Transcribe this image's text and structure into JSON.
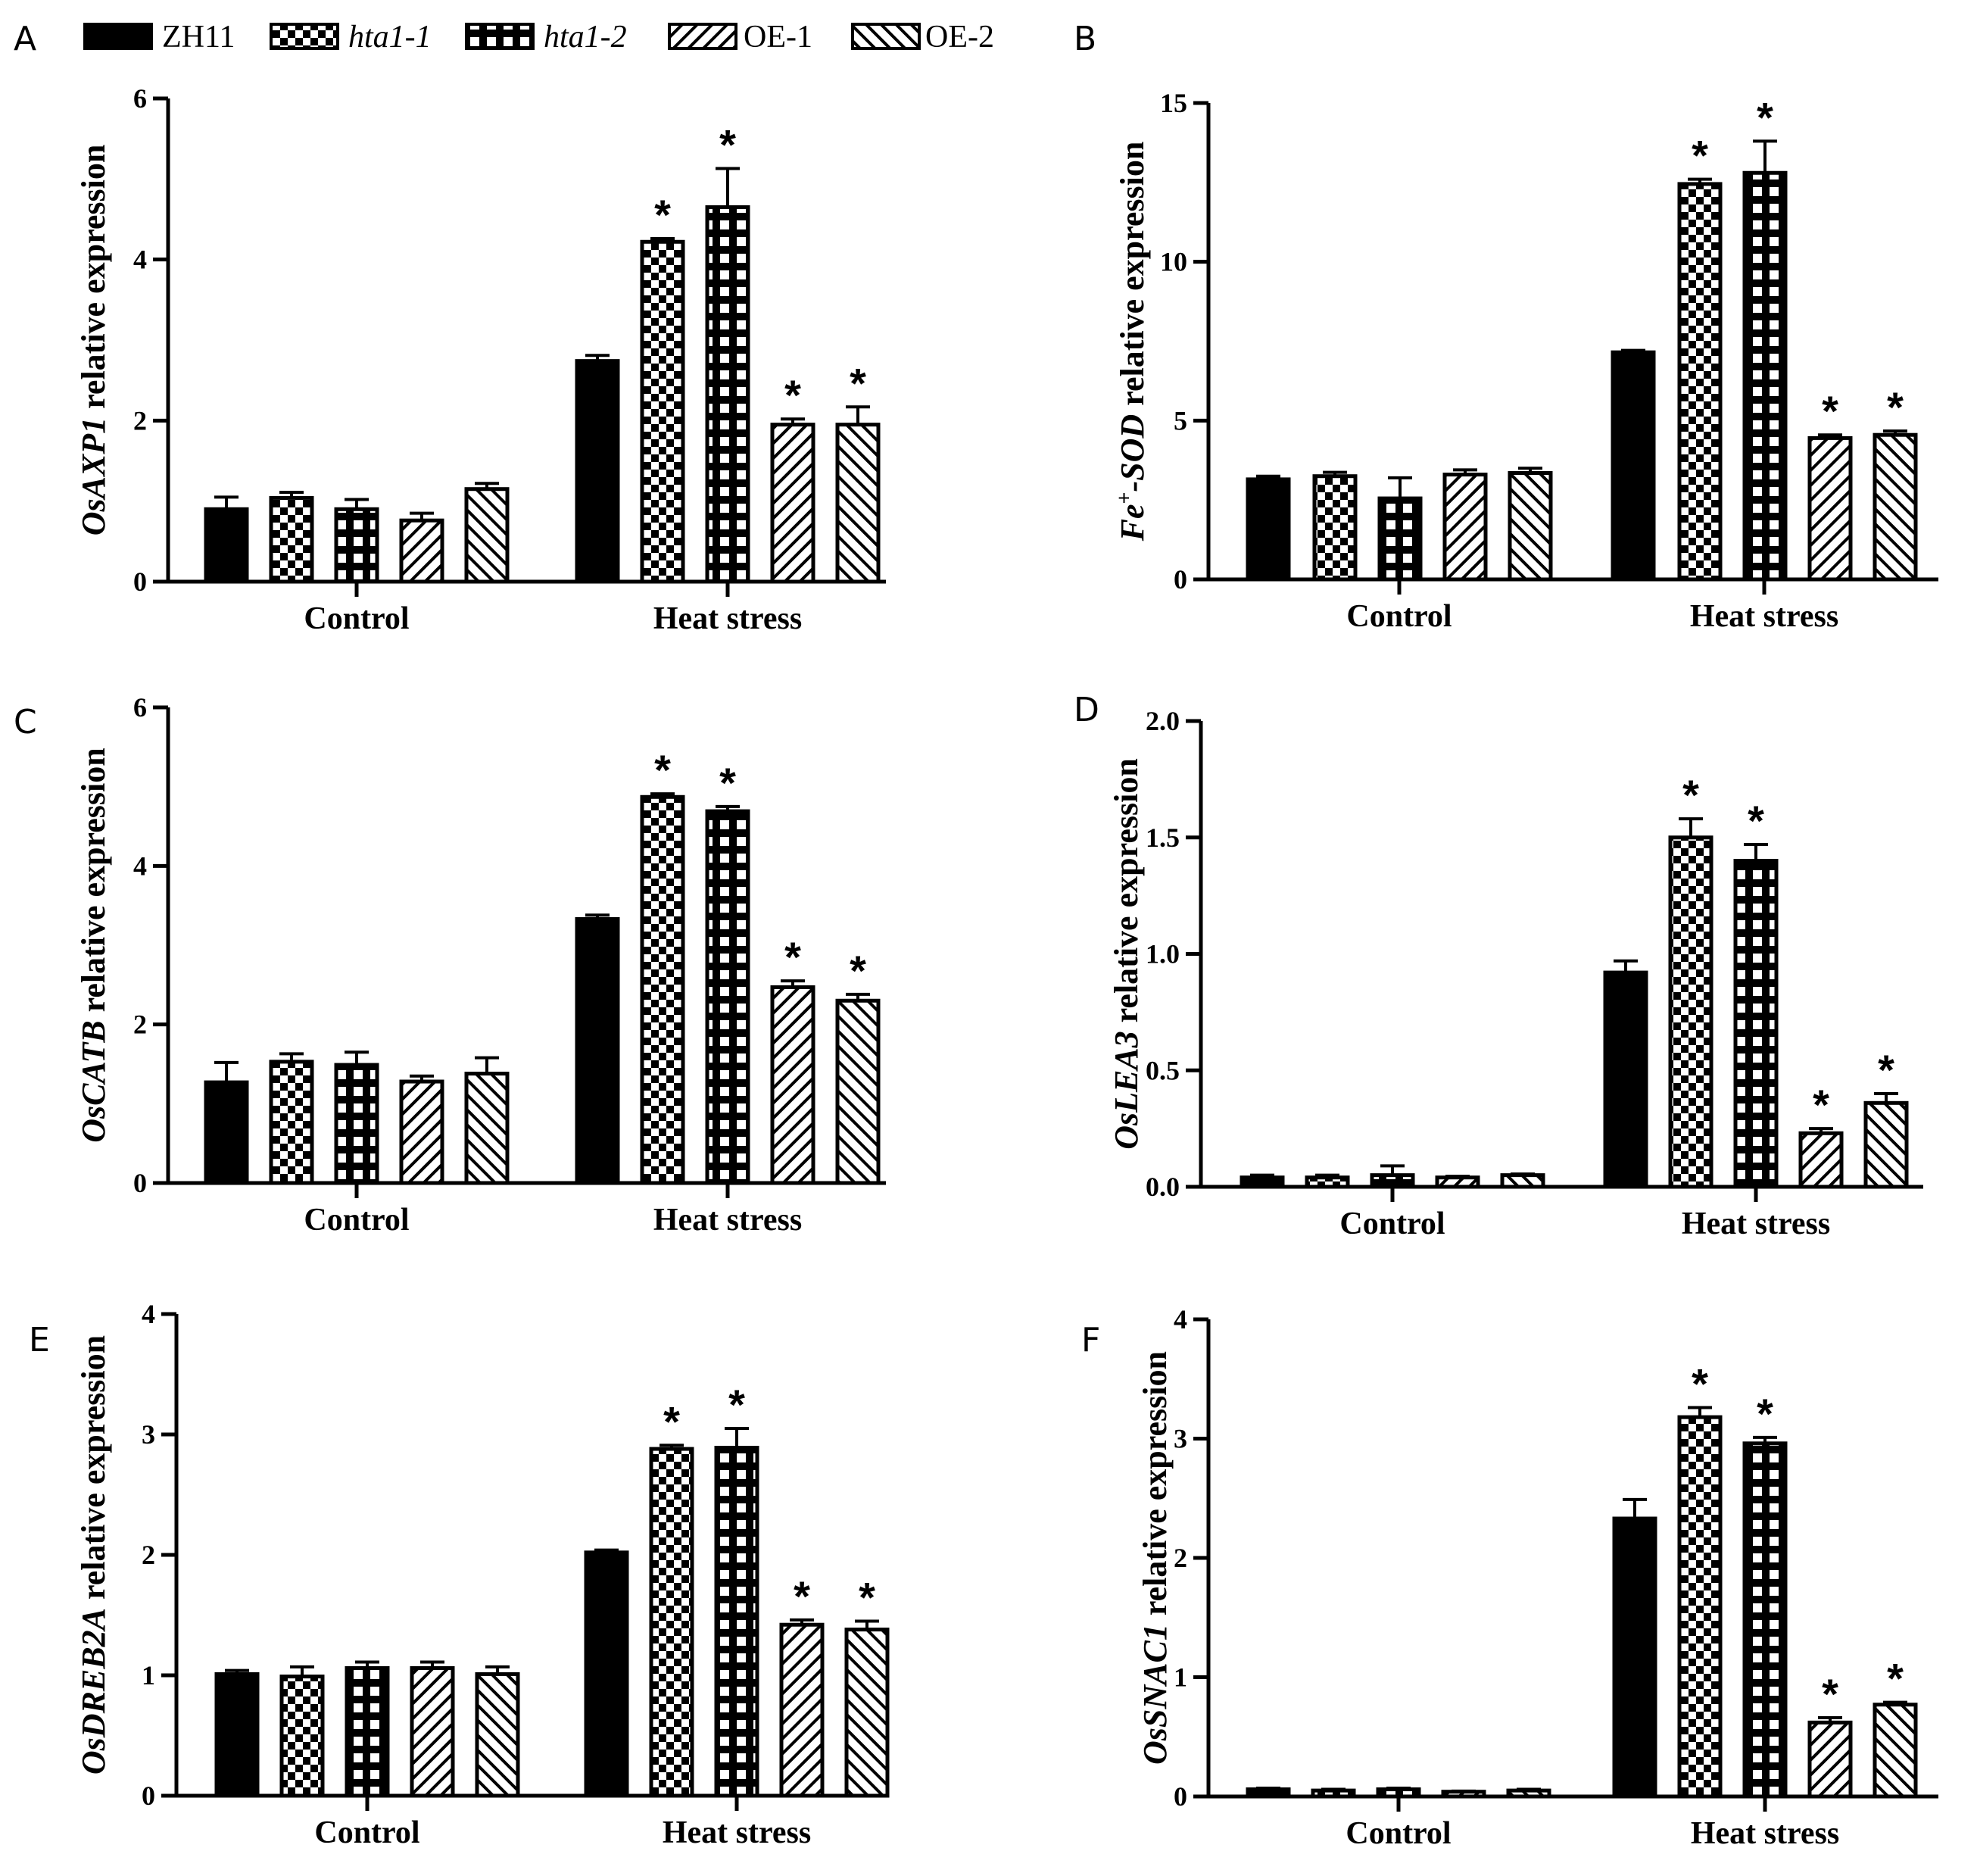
{
  "legend": [
    {
      "label": "ZH11",
      "pattern": "solid",
      "italic": false
    },
    {
      "label": "hta1-1",
      "pattern": "checker",
      "italic": true
    },
    {
      "label": "hta1-2",
      "pattern": "grid",
      "italic": true
    },
    {
      "label": "OE-1",
      "pattern": "diag",
      "italic": false
    },
    {
      "label": "OE-2",
      "pattern": "antidiag",
      "italic": false
    }
  ],
  "colors": {
    "ink": "#000000",
    "background": "#ffffff"
  },
  "significance_marker": "*",
  "chart_data": [
    {
      "panel": "A",
      "type": "bar",
      "ylabel_gene": "OsAXP1",
      "ylabel_sup": "",
      "ylabel_gene_suffix": "",
      "ylabel_rest": " relative expression",
      "ylim": [
        0,
        6
      ],
      "yticks": [
        0,
        2,
        4,
        6
      ],
      "tick_labels": [
        "0",
        "2",
        "4",
        "6"
      ],
      "categories": [
        "Control",
        "Heat stress"
      ],
      "series": [
        {
          "name": "ZH11",
          "values": [
            0.9,
            2.74
          ],
          "errors": [
            0.15,
            0.07
          ],
          "sig": [
            false,
            false
          ]
        },
        {
          "name": "hta1-1",
          "values": [
            1.04,
            4.22
          ],
          "errors": [
            0.07,
            0.04
          ],
          "sig": [
            false,
            true
          ]
        },
        {
          "name": "hta1-2",
          "values": [
            0.9,
            4.65
          ],
          "errors": [
            0.12,
            0.48
          ],
          "sig": [
            false,
            true
          ]
        },
        {
          "name": "OE-1",
          "values": [
            0.76,
            1.95
          ],
          "errors": [
            0.09,
            0.07
          ],
          "sig": [
            false,
            true
          ]
        },
        {
          "name": "OE-2",
          "values": [
            1.15,
            1.95
          ],
          "errors": [
            0.07,
            0.22
          ],
          "sig": [
            false,
            true
          ]
        }
      ]
    },
    {
      "panel": "B",
      "type": "bar",
      "ylabel_gene": "Fe",
      "ylabel_sup": "+",
      "ylabel_gene_suffix": "-SOD",
      "ylabel_rest": " relative expression",
      "ylim": [
        0,
        15
      ],
      "yticks": [
        0,
        5,
        10,
        15
      ],
      "tick_labels": [
        "0",
        "5",
        "10",
        "15"
      ],
      "categories": [
        "Control",
        "Heat stress"
      ],
      "series": [
        {
          "name": "ZH11",
          "values": [
            3.15,
            7.15
          ],
          "errors": [
            0.1,
            0.06
          ],
          "sig": [
            false,
            false
          ]
        },
        {
          "name": "hta1-1",
          "values": [
            3.25,
            12.45
          ],
          "errors": [
            0.12,
            0.15
          ],
          "sig": [
            false,
            true
          ]
        },
        {
          "name": "hta1-2",
          "values": [
            2.55,
            12.8
          ],
          "errors": [
            0.65,
            1.0
          ],
          "sig": [
            false,
            true
          ]
        },
        {
          "name": "OE-1",
          "values": [
            3.3,
            4.45
          ],
          "errors": [
            0.15,
            0.1
          ],
          "sig": [
            false,
            true
          ]
        },
        {
          "name": "OE-2",
          "values": [
            3.35,
            4.55
          ],
          "errors": [
            0.15,
            0.12
          ],
          "sig": [
            false,
            true
          ]
        }
      ]
    },
    {
      "panel": "C",
      "type": "bar",
      "ylabel_gene": "OsCATB",
      "ylabel_sup": "",
      "ylabel_gene_suffix": "",
      "ylabel_rest": " relative expression",
      "ylim": [
        0,
        6
      ],
      "yticks": [
        0,
        2,
        4,
        6
      ],
      "tick_labels": [
        "0",
        "2",
        "4",
        "6"
      ],
      "categories": [
        "Control",
        "Heat stress"
      ],
      "series": [
        {
          "name": "ZH11",
          "values": [
            1.27,
            3.33
          ],
          "errors": [
            0.25,
            0.05
          ],
          "sig": [
            false,
            false
          ]
        },
        {
          "name": "hta1-1",
          "values": [
            1.53,
            4.87
          ],
          "errors": [
            0.1,
            0.04
          ],
          "sig": [
            false,
            true
          ]
        },
        {
          "name": "hta1-2",
          "values": [
            1.49,
            4.69
          ],
          "errors": [
            0.16,
            0.06
          ],
          "sig": [
            false,
            true
          ]
        },
        {
          "name": "OE-1",
          "values": [
            1.28,
            2.47
          ],
          "errors": [
            0.07,
            0.08
          ],
          "sig": [
            false,
            true
          ]
        },
        {
          "name": "OE-2",
          "values": [
            1.38,
            2.3
          ],
          "errors": [
            0.2,
            0.08
          ],
          "sig": [
            false,
            true
          ]
        }
      ]
    },
    {
      "panel": "D",
      "type": "bar",
      "ylabel_gene": "OsLEA3",
      "ylabel_sup": "",
      "ylabel_gene_suffix": "",
      "ylabel_rest": " relative expression",
      "ylim": [
        0,
        2.0
      ],
      "yticks": [
        0,
        0.5,
        1.0,
        1.5,
        2.0
      ],
      "tick_labels": [
        "0.0",
        "0.5",
        "1.0",
        "1.5",
        "2.0"
      ],
      "categories": [
        "Control",
        "Heat stress"
      ],
      "series": [
        {
          "name": "ZH11",
          "values": [
            0.04,
            0.92
          ],
          "errors": [
            0.01,
            0.05
          ],
          "sig": [
            false,
            false
          ]
        },
        {
          "name": "hta1-1",
          "values": [
            0.04,
            1.5
          ],
          "errors": [
            0.01,
            0.08
          ],
          "sig": [
            false,
            true
          ]
        },
        {
          "name": "hta1-2",
          "values": [
            0.05,
            1.4
          ],
          "errors": [
            0.04,
            0.07
          ],
          "sig": [
            false,
            true
          ]
        },
        {
          "name": "OE-1",
          "values": [
            0.04,
            0.23
          ],
          "errors": [
            0.005,
            0.02
          ],
          "sig": [
            false,
            true
          ]
        },
        {
          "name": "OE-2",
          "values": [
            0.05,
            0.36
          ],
          "errors": [
            0.005,
            0.04
          ],
          "sig": [
            false,
            true
          ]
        }
      ]
    },
    {
      "panel": "E",
      "type": "bar",
      "ylabel_gene": "OsDREB2A",
      "ylabel_sup": "",
      "ylabel_gene_suffix": "",
      "ylabel_rest": "  relative expression",
      "ylim": [
        0,
        4
      ],
      "yticks": [
        0,
        1,
        2,
        3,
        4
      ],
      "tick_labels": [
        "0",
        "1",
        "2",
        "3",
        "4"
      ],
      "categories": [
        "Control",
        "Heat stress"
      ],
      "series": [
        {
          "name": "ZH11",
          "values": [
            1.01,
            2.02
          ],
          "errors": [
            0.03,
            0.02
          ],
          "sig": [
            false,
            false
          ]
        },
        {
          "name": "hta1-1",
          "values": [
            0.99,
            2.88
          ],
          "errors": [
            0.08,
            0.03
          ],
          "sig": [
            false,
            true
          ]
        },
        {
          "name": "hta1-2",
          "values": [
            1.06,
            2.89
          ],
          "errors": [
            0.05,
            0.16
          ],
          "sig": [
            false,
            true
          ]
        },
        {
          "name": "OE-1",
          "values": [
            1.06,
            1.42
          ],
          "errors": [
            0.05,
            0.04
          ],
          "sig": [
            false,
            true
          ]
        },
        {
          "name": "OE-2",
          "values": [
            1.01,
            1.38
          ],
          "errors": [
            0.06,
            0.07
          ],
          "sig": [
            false,
            true
          ]
        }
      ]
    },
    {
      "panel": "F",
      "type": "bar",
      "ylabel_gene": "OsSNAC1",
      "ylabel_sup": "",
      "ylabel_gene_suffix": "",
      "ylabel_rest": " relative expression",
      "ylim": [
        0,
        4
      ],
      "yticks": [
        0,
        1,
        2,
        3,
        4
      ],
      "tick_labels": [
        "0",
        "1",
        "2",
        "3",
        "4"
      ],
      "categories": [
        "Control",
        "Heat stress"
      ],
      "series": [
        {
          "name": "ZH11",
          "values": [
            0.06,
            2.33
          ],
          "errors": [
            0.01,
            0.16
          ],
          "sig": [
            false,
            false
          ]
        },
        {
          "name": "hta1-1",
          "values": [
            0.05,
            3.18
          ],
          "errors": [
            0.01,
            0.08
          ],
          "sig": [
            false,
            true
          ]
        },
        {
          "name": "hta1-2",
          "values": [
            0.06,
            2.96
          ],
          "errors": [
            0.01,
            0.05
          ],
          "sig": [
            false,
            true
          ]
        },
        {
          "name": "OE-1",
          "values": [
            0.04,
            0.62
          ],
          "errors": [
            0.005,
            0.04
          ],
          "sig": [
            false,
            true
          ]
        },
        {
          "name": "OE-2",
          "values": [
            0.05,
            0.77
          ],
          "errors": [
            0.01,
            0.02
          ],
          "sig": [
            false,
            true
          ]
        }
      ]
    }
  ]
}
